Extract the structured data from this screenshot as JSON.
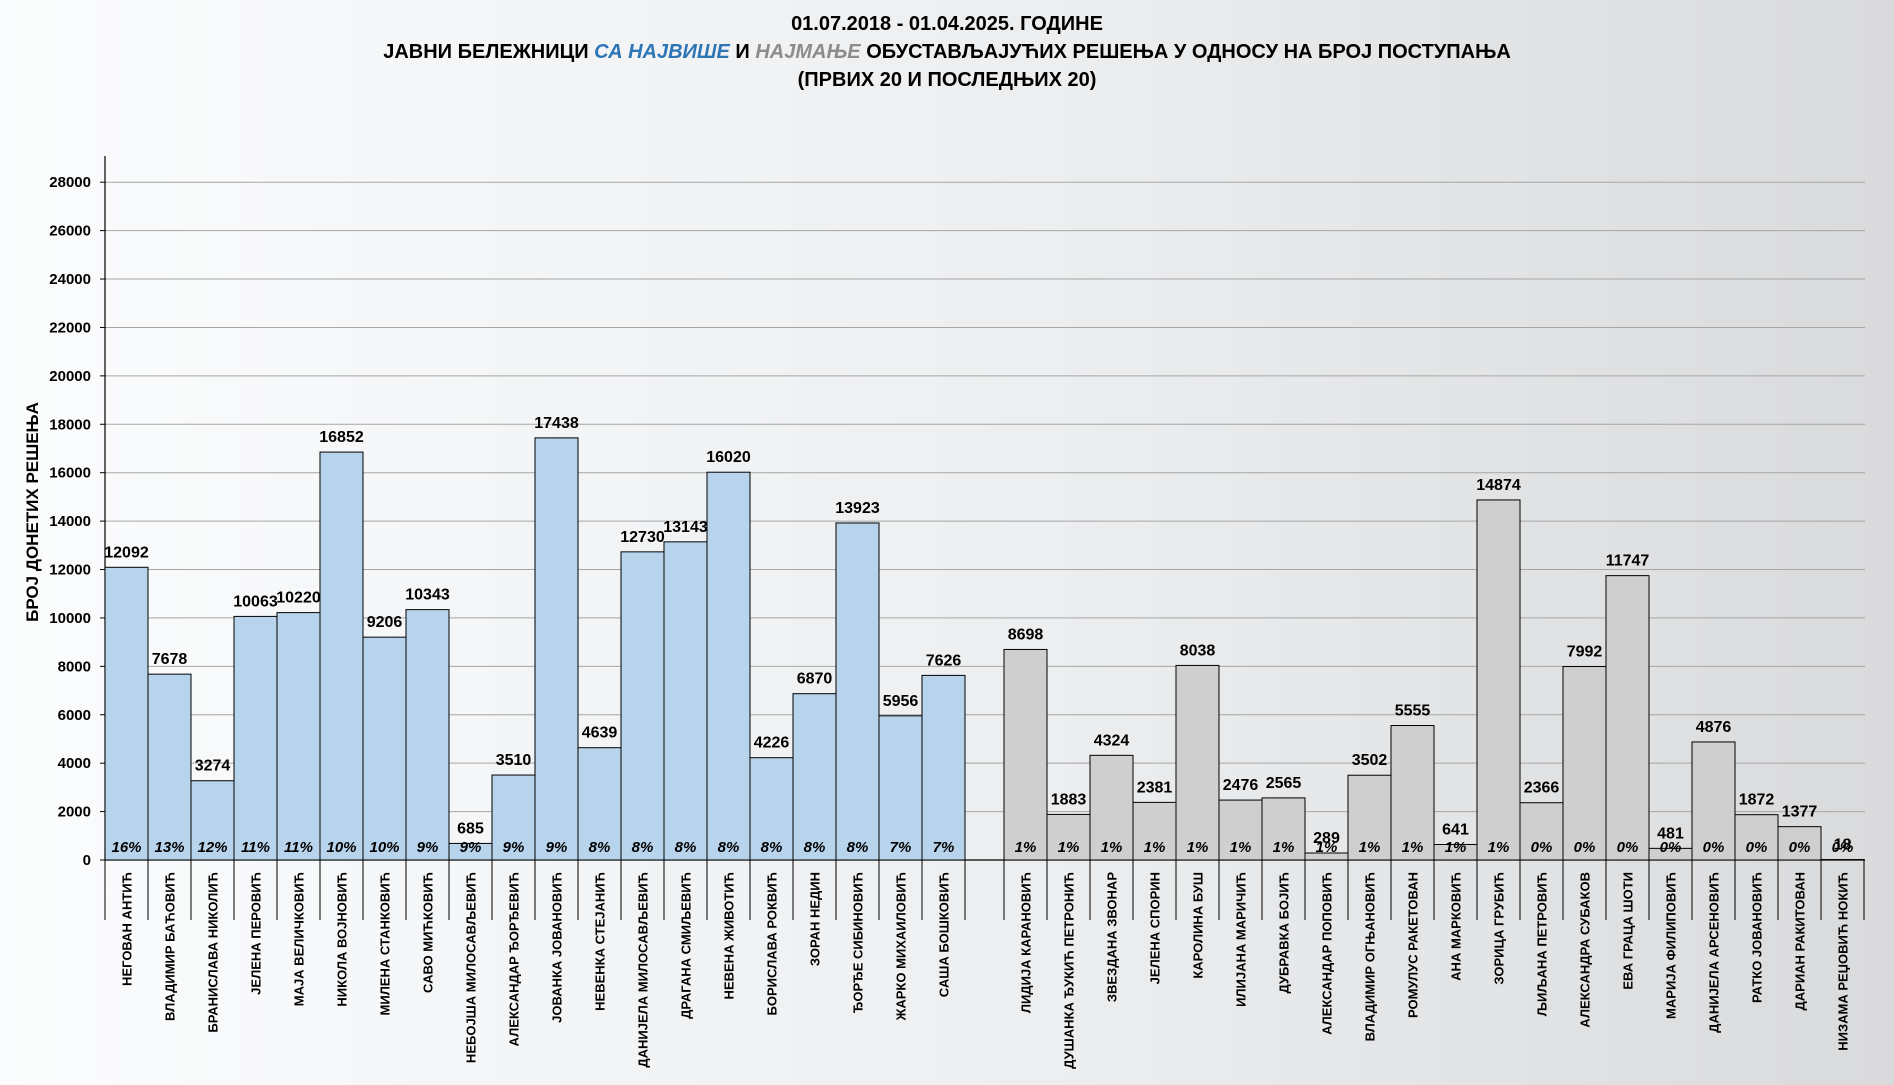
{
  "title": {
    "line1": "01.07.2018 - 01.04.2025. ГОДИНЕ",
    "line2_a": "ЈАВНИ БЕЛЕЖНИЦИ ",
    "line2_b": "СА НАЈВИШЕ",
    "line2_c": " И ",
    "line2_d": "НАЈМАЊЕ",
    "line2_e": " ОБУСТАВЉАЈУЋИХ РЕШЕЊА У ОДНОСУ НА БРОЈ ПОСТУПАЊА",
    "line3": "(ПРВИХ 20 И ПОСЛЕДЊИХ 20)"
  },
  "colors": {
    "top_group": "#b8d3ec",
    "bottom_group": "#cfcfcf",
    "bar_stroke": "#000000",
    "grid": "#a6a6a6"
  },
  "chart_data": {
    "type": "bar",
    "ylabel": "БРОЈ ДОНЕТИХ РЕШЕЊА",
    "ylim": [
      0,
      29000
    ],
    "yticks": [
      0,
      2000,
      4000,
      6000,
      8000,
      10000,
      12000,
      14000,
      16000,
      18000,
      20000,
      22000,
      24000,
      26000,
      28000
    ],
    "grid": true,
    "groups": [
      {
        "name": "top",
        "categories": [
          "НЕГОВАН АНТИЋ",
          "ВЛАДИМИР БАЋОВИЋ",
          "БРАНИСЛАВА НИКОЛИЋ",
          "ЈЕЛЕНА ПЕРОВИЋ",
          "МАЈА ВЕЛИЧКОВИЋ",
          "НИКОЛА ВОЈНОВИЋ",
          "МИЛЕНА СТАНКОВИЋ",
          "САВО МИЋКОВИЋ",
          "НЕБОЈША МИЛОСАВЉЕВИЋ",
          "АЛЕКСАНДАР ЂОРЂЕВИЋ",
          "ЈОВАНКА ЈОВАНОВИЋ",
          "НЕВЕНКА СТЕЈАНИЋ",
          "ДАНИЈЕЛА МИЛОСАВЉЕВИЋ",
          "ДРАГАНА СМИЉЕВИЋ",
          "НЕВЕНА ЖИВОТИЋ",
          "БОРИСЛАВА РОКВИЋ",
          "ЗОРАН НЕДИН",
          "ЂОРЂЕ СИБИНОВИЋ",
          "ЖАРКО МИХАИЛОВИЋ",
          "САША БОШКОВИЋ"
        ],
        "values": [
          12092,
          7678,
          3274,
          10063,
          10220,
          16852,
          9206,
          10343,
          685,
          3510,
          17438,
          4639,
          12730,
          13143,
          16020,
          4226,
          6870,
          13923,
          5956,
          7626
        ],
        "percents": [
          "16%",
          "13%",
          "12%",
          "11%",
          "11%",
          "10%",
          "10%",
          "9%",
          "9%",
          "9%",
          "9%",
          "8%",
          "8%",
          "8%",
          "8%",
          "8%",
          "8%",
          "8%",
          "7%",
          "7%"
        ]
      },
      {
        "name": "bottom",
        "categories": [
          "ЛИДИЈА КАРАНОВИЋ",
          "ДУШАНКА ЂУКИЋ ПЕТРОНИЋ",
          "ЗВЕЗДАНА ЗВОНАР",
          "ЈЕЛЕНА СПОРИН",
          "КАРОЛИНА БУШ",
          "ИЛИЈАНА МАРИЧИЋ",
          "ДУБРАВКА БОЈИЋ",
          "АЛЕКСАНДАР ПОПОВИЋ",
          "ВЛАДИМИР ОГЊАНОВИЋ",
          "РОМУЛУС РАКЕТОВАН",
          "АНА МАРКОВИЋ",
          "ЗОРИЦА ГРУБИЋ",
          "ЉИЉАНА ПЕТРОВИЋ",
          "АЛЕКСАНДРА СУБАКОВ",
          "ЕВА ГРАЦА ШОТИ",
          "МАРИЈА ФИЛИПОВИЋ",
          "ДАНИЈЕЛА АРСЕНОВИЋ",
          "РАТКО ЈОВАНОВИЋ",
          "ДАРИАН РАКИТОВАН",
          "НИЗАМА РЕЏОВИЋ НОКИЋ"
        ],
        "values": [
          8698,
          1883,
          4324,
          2381,
          8038,
          2476,
          2565,
          289,
          3502,
          5555,
          641,
          14874,
          2366,
          7992,
          11747,
          481,
          4876,
          1872,
          1377,
          18
        ],
        "percents": [
          "1%",
          "1%",
          "1%",
          "1%",
          "1%",
          "1%",
          "1%",
          "1%",
          "1%",
          "1%",
          "1%",
          "1%",
          "0%",
          "0%",
          "0%",
          "0%",
          "0%",
          "0%",
          "0%",
          "0%"
        ]
      }
    ]
  }
}
